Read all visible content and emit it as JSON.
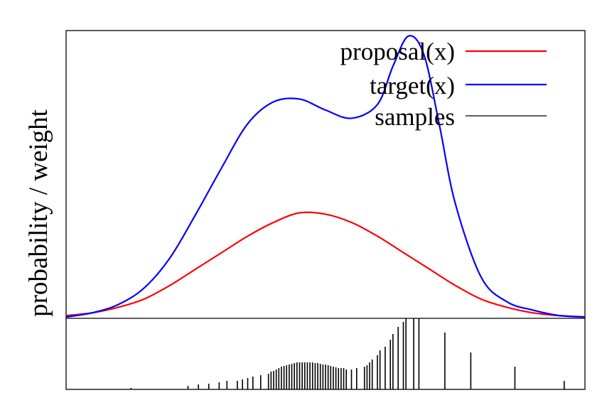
{
  "chart_data": {
    "type": "line",
    "ylabel": "probability / weight",
    "xlabel": "",
    "title": "",
    "grid": false,
    "legend_position": "top-right",
    "x_range": [
      0,
      1
    ],
    "top_panel": {
      "y_range": [
        0,
        1.05
      ],
      "series": [
        {
          "name": "proposal(x)",
          "color": "#ff0000",
          "x": [
            0,
            0.05,
            0.1,
            0.15,
            0.2,
            0.25,
            0.3,
            0.35,
            0.4,
            0.45,
            0.5,
            0.55,
            0.6,
            0.65,
            0.7,
            0.75,
            0.8,
            0.85,
            0.9,
            0.95,
            1
          ],
          "y": [
            0.01,
            0.02,
            0.04,
            0.07,
            0.12,
            0.18,
            0.24,
            0.3,
            0.35,
            0.385,
            0.38,
            0.35,
            0.3,
            0.24,
            0.18,
            0.12,
            0.07,
            0.04,
            0.02,
            0.01,
            0.005
          ]
        },
        {
          "name": "target(x)",
          "color": "#0000ff",
          "x": [
            0,
            0.05,
            0.1,
            0.15,
            0.2,
            0.25,
            0.3,
            0.35,
            0.4,
            0.45,
            0.5,
            0.55,
            0.6,
            0.63,
            0.66,
            0.69,
            0.72,
            0.75,
            0.8,
            0.85,
            0.9,
            0.95,
            1
          ],
          "y": [
            0.005,
            0.02,
            0.05,
            0.11,
            0.22,
            0.38,
            0.55,
            0.71,
            0.79,
            0.8,
            0.76,
            0.73,
            0.78,
            0.92,
            1.03,
            0.96,
            0.7,
            0.42,
            0.15,
            0.06,
            0.03,
            0.01,
            0.005
          ]
        },
        {
          "name": "samples",
          "color": "#000000",
          "x": [],
          "y": []
        }
      ]
    },
    "bottom_panel": {
      "type": "bar",
      "y_range": [
        0,
        1
      ],
      "samples": {
        "name": "samples",
        "x": [
          0.125,
          0.235,
          0.255,
          0.275,
          0.295,
          0.31,
          0.33,
          0.34,
          0.35,
          0.36,
          0.375,
          0.39,
          0.395,
          0.4,
          0.405,
          0.41,
          0.415,
          0.42,
          0.425,
          0.43,
          0.435,
          0.44,
          0.445,
          0.45,
          0.455,
          0.46,
          0.465,
          0.47,
          0.475,
          0.48,
          0.485,
          0.49,
          0.495,
          0.5,
          0.505,
          0.51,
          0.515,
          0.52,
          0.525,
          0.53,
          0.535,
          0.54,
          0.55,
          0.56,
          0.575,
          0.58,
          0.585,
          0.59,
          0.6,
          0.605,
          0.615,
          0.625,
          0.63,
          0.64,
          0.65,
          0.655,
          0.67,
          0.68,
          0.73,
          0.78,
          0.865,
          0.96
        ],
        "weights": [
          0.02,
          0.05,
          0.07,
          0.08,
          0.1,
          0.12,
          0.12,
          0.14,
          0.16,
          0.18,
          0.2,
          0.22,
          0.25,
          0.26,
          0.28,
          0.3,
          0.32,
          0.33,
          0.34,
          0.35,
          0.36,
          0.37,
          0.38,
          0.38,
          0.38,
          0.38,
          0.38,
          0.38,
          0.38,
          0.37,
          0.37,
          0.36,
          0.35,
          0.35,
          0.34,
          0.33,
          0.32,
          0.31,
          0.3,
          0.3,
          0.3,
          0.28,
          0.28,
          0.3,
          0.32,
          0.34,
          0.38,
          0.42,
          0.48,
          0.55,
          0.6,
          0.7,
          0.78,
          0.88,
          0.95,
          1.0,
          1.0,
          1.0,
          0.8,
          0.52,
          0.32,
          0.12
        ]
      }
    }
  }
}
